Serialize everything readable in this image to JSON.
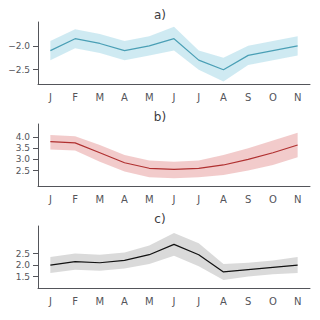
{
  "chart_data": [
    {
      "type": "line",
      "title": "a)",
      "categories": [
        "J",
        "F",
        "M",
        "A",
        "M",
        "J",
        "J",
        "A",
        "S",
        "O",
        "N"
      ],
      "series": [
        {
          "type": "band",
          "color": "#a8d8e8",
          "lower": [
            -2.3,
            -2.05,
            -2.15,
            -2.3,
            -2.2,
            -2.1,
            -2.5,
            -2.75,
            -2.4,
            -2.3,
            -2.2
          ],
          "upper": [
            -1.9,
            -1.65,
            -1.75,
            -1.9,
            -1.8,
            -1.6,
            -2.1,
            -2.25,
            -2.0,
            -1.9,
            -1.8
          ]
        },
        {
          "type": "line",
          "color": "#4a9fb5",
          "values": [
            -2.1,
            -1.85,
            -1.95,
            -2.1,
            -2.0,
            -1.85,
            -2.3,
            -2.5,
            -2.2,
            -2.1,
            -2.0
          ]
        }
      ],
      "ylim": [
        -2.8,
        -1.5
      ],
      "yticks": [
        {
          "value": -2.5,
          "label": "−2.5"
        },
        {
          "value": -2.0,
          "label": "−2.0"
        }
      ],
      "grid": false
    },
    {
      "type": "line",
      "title": "b)",
      "categories": [
        "J",
        "F",
        "M",
        "A",
        "M",
        "J",
        "J",
        "A",
        "S",
        "O",
        "N"
      ],
      "series": [
        {
          "type": "band",
          "color": "#e8a0a0",
          "lower": [
            3.45,
            3.4,
            2.9,
            2.45,
            2.2,
            2.15,
            2.2,
            2.3,
            2.5,
            2.75,
            3.1
          ],
          "upper": [
            4.1,
            4.05,
            3.65,
            3.2,
            2.95,
            2.9,
            2.95,
            3.2,
            3.5,
            3.85,
            4.2
          ]
        },
        {
          "type": "line",
          "color": "#b03030",
          "values": [
            3.8,
            3.75,
            3.3,
            2.85,
            2.6,
            2.55,
            2.6,
            2.75,
            3.0,
            3.3,
            3.65
          ]
        }
      ],
      "ylim": [
        1.8,
        4.6
      ],
      "yticks": [
        2.5,
        {
          "value": 3.0,
          "label": "3.0"
        },
        3.5,
        {
          "value": 4.0,
          "label": "4.0"
        }
      ],
      "grid": false
    },
    {
      "type": "line",
      "title": "c)",
      "categories": [
        "J",
        "F",
        "M",
        "A",
        "M",
        "J",
        "J",
        "A",
        "S",
        "O",
        "N"
      ],
      "series": [
        {
          "type": "band",
          "color": "#bbbbbb",
          "lower": [
            1.65,
            1.8,
            1.75,
            1.85,
            2.05,
            2.4,
            1.95,
            1.35,
            1.5,
            1.6,
            1.65
          ],
          "upper": [
            2.35,
            2.5,
            2.45,
            2.55,
            2.85,
            3.4,
            2.95,
            2.05,
            2.1,
            2.2,
            2.35
          ]
        },
        {
          "type": "line",
          "color": "#111111",
          "values": [
            2.0,
            2.15,
            2.1,
            2.2,
            2.45,
            2.9,
            2.45,
            1.7,
            1.8,
            1.9,
            2.0
          ]
        }
      ],
      "ylim": [
        1.0,
        3.7
      ],
      "yticks": [
        1.5,
        {
          "value": 2.0,
          "label": "2.0"
        },
        2.5
      ],
      "grid": false
    }
  ]
}
